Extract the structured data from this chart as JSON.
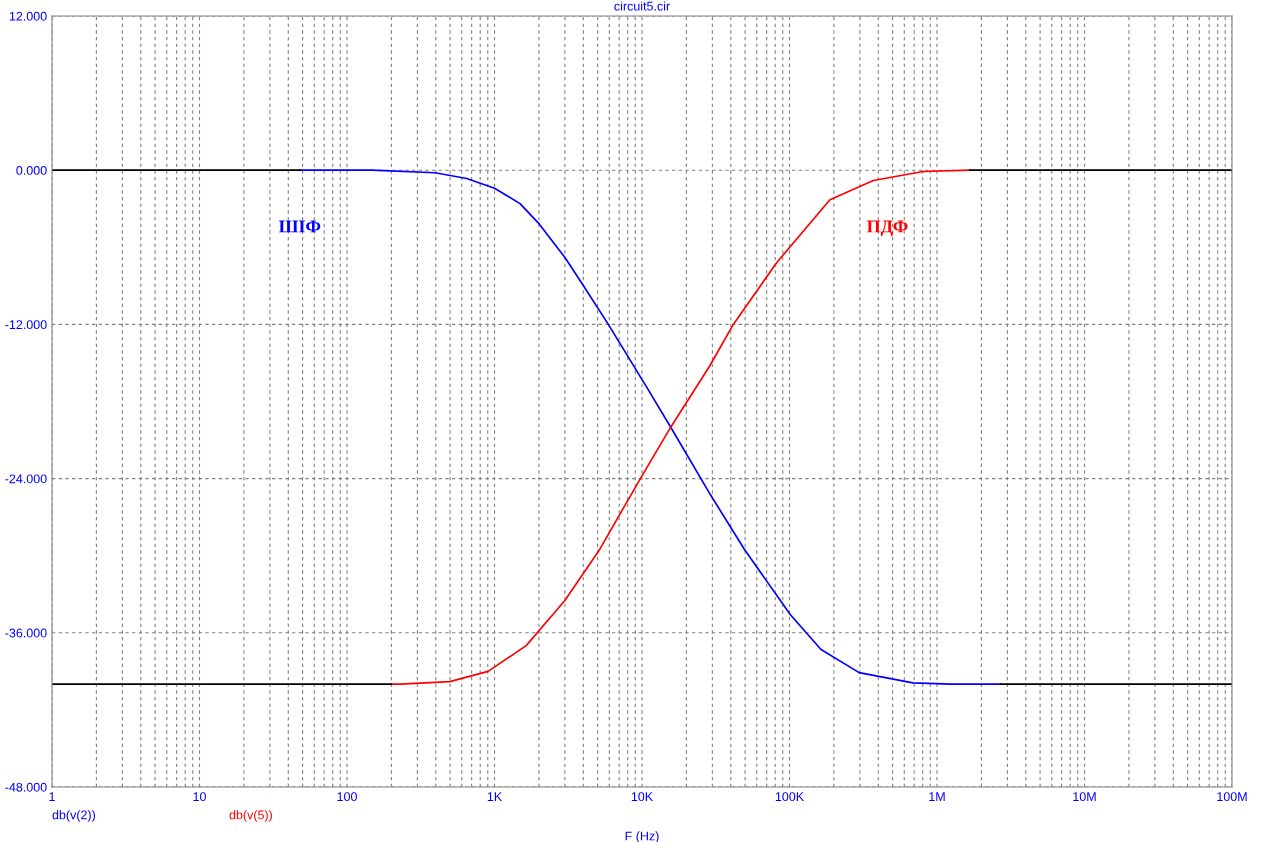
{
  "chart_data": {
    "type": "line",
    "title": "circuit5.cir",
    "xlabel": "F (Hz)",
    "log": "x",
    "grid": true,
    "legend": "bottom left",
    "line_style": "solid",
    "marker": "none",
    "xlim": [
      1,
      100000000
    ],
    "xticks": [
      {
        "value": 1,
        "label": "1"
      },
      {
        "value": 10,
        "label": "10"
      },
      {
        "value": 100,
        "label": "100"
      },
      {
        "value": 1000,
        "label": "1K"
      },
      {
        "value": 10000,
        "label": "10K"
      },
      {
        "value": 100000,
        "label": "100K"
      },
      {
        "value": 1000000,
        "label": "1M"
      },
      {
        "value": 10000000,
        "label": "10M"
      },
      {
        "value": 100000000,
        "label": "100M"
      }
    ],
    "ylim": [
      -48,
      12
    ],
    "yticks": [
      {
        "value": -48,
        "label": "-48.000"
      },
      {
        "value": -36,
        "label": "-36.000"
      },
      {
        "value": -24,
        "label": "-24.000"
      },
      {
        "value": -12,
        "label": "-12.000"
      },
      {
        "value": 0,
        "label": "0.000"
      },
      {
        "value": 12,
        "label": "12.000"
      }
    ],
    "series": [
      {
        "name": "db(v(2))",
        "color": "#0000ff",
        "x": [
          48,
          147,
          395,
          648,
          1000,
          1490,
          2015,
          3005,
          3960,
          5910,
          11040,
          15660,
          29260,
          49400,
          101400,
          163600,
          296600,
          686000,
          1240000,
          2700000
        ],
        "values": [
          0,
          0,
          -0.2,
          -0.65,
          -1.4,
          -2.6,
          -4.2,
          -6.8,
          -8.9,
          -12,
          -17.1,
          -20,
          -25.3,
          -29.5,
          -34.6,
          -37.3,
          -39.1,
          -39.9,
          -40,
          -40
        ]
      },
      {
        "name": "db(v(5))",
        "color": "#ff0000",
        "x": [
          200,
          229,
          498,
          904,
          1640,
          2990,
          5110,
          9860,
          15660,
          28900,
          41600,
          81800,
          188000,
          370000,
          807000,
          1670000
        ],
        "values": [
          -40,
          -40,
          -39.8,
          -39,
          -37,
          -33.5,
          -29.6,
          -23.9,
          -20,
          -15.2,
          -12,
          -7.2,
          -2.3,
          -0.8,
          -0.1,
          0
        ]
      },
      {
        "color": "#000000",
        "x": [
          1,
          48
        ],
        "values": [
          0,
          0
        ]
      },
      {
        "color": "#000000",
        "x": [
          1,
          200
        ],
        "values": [
          -40,
          -40
        ]
      },
      {
        "color": "#000000",
        "x": [
          1670000,
          100000000
        ],
        "values": [
          0,
          0
        ]
      },
      {
        "color": "#000000",
        "x": [
          2700000,
          100000000
        ],
        "values": [
          -40,
          -40
        ]
      }
    ],
    "annotations": [
      "ШІФ",
      "ПДФ"
    ]
  }
}
